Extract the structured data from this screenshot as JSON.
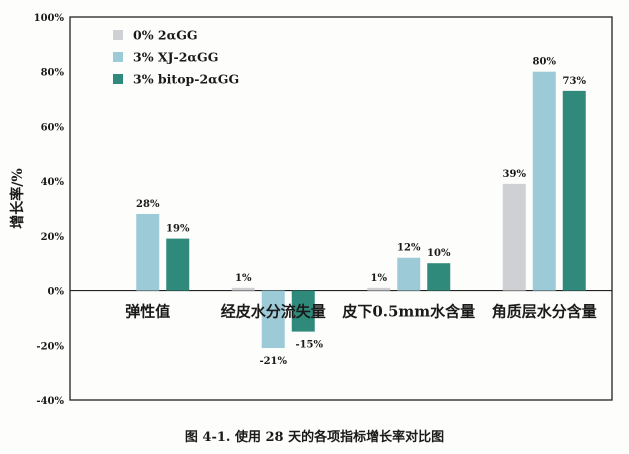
{
  "caption": "图 4-1. 使用 28 天的各项指标增长率对比图",
  "chart_data": {
    "type": "bar",
    "title": "",
    "xlabel": "",
    "ylabel": "增长率/%",
    "ylim": [
      -40,
      100
    ],
    "yticks": [
      -40,
      -20,
      0,
      20,
      40,
      60,
      80,
      100
    ],
    "ytick_labels": [
      "-40%",
      "-20%",
      "0%",
      "20%",
      "40%",
      "60%",
      "80%",
      "100%"
    ],
    "grid": false,
    "legend_position": "top-left",
    "categories": [
      "弹性值",
      "经皮水分流失量",
      "皮下0.5mm水含量",
      "角质层水分含量"
    ],
    "series": [
      {
        "name": "0% 2αGG",
        "color": "#cfd0d4",
        "values": [
          null,
          1,
          1,
          39
        ],
        "labels": [
          "",
          "1%",
          "1%",
          "39%"
        ]
      },
      {
        "name": "3% XJ-2αGG",
        "color": "#9ccbd7",
        "values": [
          28,
          -21,
          12,
          80
        ],
        "labels": [
          "28%",
          "-21%",
          "12%",
          "80%"
        ]
      },
      {
        "name": "3% bitop-2αGG",
        "color": "#2f8a7c",
        "values": [
          19,
          -15,
          10,
          73
        ],
        "labels": [
          "19%",
          "-15%",
          "10%",
          "73%"
        ]
      }
    ]
  }
}
